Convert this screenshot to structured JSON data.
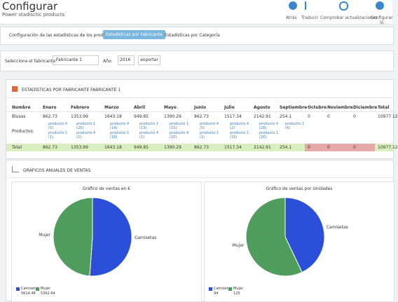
{
  "header": {
    "title": "Configurar",
    "subtitle": "Power stadisctic products"
  },
  "toolbar": [
    "Atrás",
    "Traducir",
    "Comprobar actualizaciones",
    "Configurar lo"
  ],
  "tabs": [
    "Configuración de las estadísticas de los productos",
    "Estadísticas por Fabricante",
    "Estadísticas por Categoría"
  ],
  "filter": {
    "label": "Selecciona el fabricante:",
    "manufacturer": "Fabricante 1",
    "year_label": "Año:",
    "year": "2016",
    "button": "exportar"
  },
  "stats": {
    "title": "ESTADÍSTICAS POR FABRICANTE FABRICANTE 1",
    "columns": [
      "Nombre",
      "Enero",
      "Febrero",
      "Marzo",
      "Abril",
      "Mayo",
      "Junio",
      "Julio",
      "Agosto",
      "Septiembre",
      "Octubre",
      "Noviembre",
      "Diciembre",
      "Total"
    ],
    "rows": [
      {
        "name": "Blusas",
        "values": [
          862.73,
          1353.99,
          1643.18,
          949.85,
          1390.29,
          862.73,
          1517.34,
          2142.91,
          254.1,
          0,
          0,
          0,
          10977.12
        ]
      }
    ],
    "products_label": "Productos:",
    "products": [
      [
        "producto 4 (5)",
        "producto 1 (1)"
      ],
      [
        "producto 1 (25)",
        "producto 4 (2)"
      ],
      [
        "producto 4 (14)",
        "producto 1 (18)"
      ],
      [
        "producto 1 (13)",
        "producto 4 (1)"
      ],
      [
        "producto 1 (15)",
        "producto 4 (20)"
      ],
      [
        "producto 4 (5)",
        "producto 1 (1)"
      ],
      [
        "producto 4 (2)",
        "producto 1 (16)"
      ],
      [
        "producto 4 (28)",
        "producto 1 (26)"
      ],
      [
        "producto 1 (6)"
      ]
    ],
    "total_label": "Total",
    "totals": [
      862.73,
      1353.99,
      1643.18,
      949.85,
      1390.29,
      862.73,
      1517.34,
      2142.91,
      254.1,
      0,
      0,
      0,
      10977.12
    ]
  },
  "charts": {
    "title": "GRÁFICOS ANUALES DE VENTAS",
    "pies": [
      {
        "title": "Gráfico de ventas en €",
        "slices": [
          {
            "name": "Camisetas",
            "value": 5614.48,
            "color": "#2b4fd8"
          },
          {
            "name": "Mujer",
            "value": 5362.64,
            "color": "#4f9e5e"
          }
        ]
      },
      {
        "title": "Gráfico de ventas por Unidades",
        "slices": [
          {
            "name": "Camisetas",
            "value": 94,
            "color": "#2b4fd8"
          },
          {
            "name": "Mujer",
            "value": 125,
            "color": "#4f9e5e"
          }
        ]
      }
    ]
  }
}
